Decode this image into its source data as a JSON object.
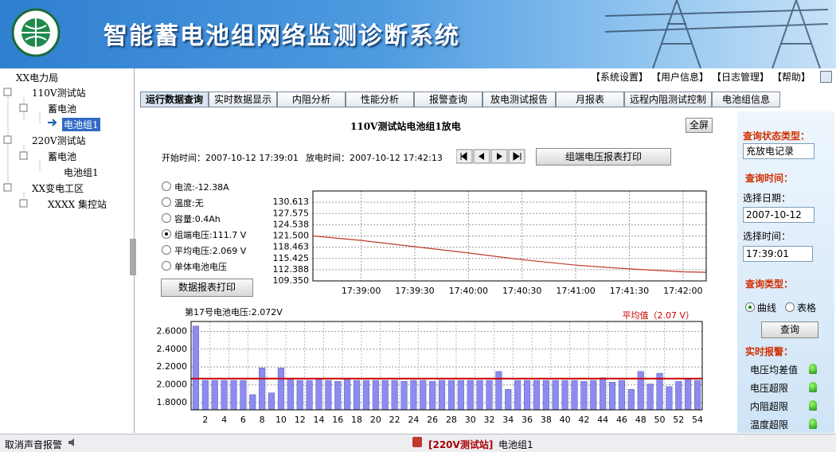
{
  "header": {
    "title": "智能蓄电池组网络监测诊断系统"
  },
  "nav": [
    "【系统设置】",
    "【用户信息】",
    "【日志管理】",
    "【帮助】"
  ],
  "tree": [
    "XX电力局",
    "110V测试站",
    "蓄电池",
    "电池组1",
    "220V测试站",
    "蓄电池",
    "电池组1",
    "XX变电工区",
    "XXXX 集控站"
  ],
  "tabs": [
    "运行数据查询",
    "实时数据显示",
    "内阻分析",
    "性能分析",
    "报警查询",
    "放电测试报告",
    "月报表",
    "远程内阻测试控制",
    "电池组信息"
  ],
  "panel": {
    "title": "110V测试站电池组1放电",
    "fullscreen": "全屏",
    "start": "开始时间：2007-10-12 17:39:01",
    "discharge": "放电时间：2007-10-12 17:42:13",
    "print_group": "组端电压报表打印",
    "print_data": "数据报表打印",
    "options": [
      {
        "label": "电流:-12.38A",
        "checked": false
      },
      {
        "label": "温度:无",
        "checked": false
      },
      {
        "label": "容量:0.4Ah",
        "checked": false
      },
      {
        "label": "组端电压:111.7 V",
        "checked": true
      },
      {
        "label": "平均电压:2.069 V",
        "checked": false
      },
      {
        "label": "单体电池电压",
        "checked": false
      }
    ]
  },
  "chart_data": [
    {
      "type": "line",
      "color": "#c0392b",
      "grid": true,
      "x": [
        "17:38:33",
        "17:39:00",
        "17:39:30",
        "17:40:00",
        "17:40:30",
        "17:41:00",
        "17:41:30",
        "17:42:00",
        "17:42:13"
      ],
      "values": [
        121.5,
        120.3,
        118.6,
        116.9,
        115.1,
        113.6,
        112.6,
        111.8,
        111.7
      ],
      "xlim": [
        "17:38:33",
        "17:42:13"
      ],
      "xticks": [
        "17:39:00",
        "17:39:30",
        "17:40:00",
        "17:40:30",
        "17:41:00",
        "17:41:30",
        "17:42:00"
      ],
      "ylim": [
        109.35,
        133.65
      ],
      "yticks": [
        {
          "value": 109.35,
          "label": "109.350"
        },
        112.388,
        115.425,
        118.463,
        {
          "value": 121.5,
          "label": "121.500"
        },
        124.538,
        127.575,
        130.613
      ]
    },
    {
      "type": "bar",
      "title": "第17号电池电压:2.072V",
      "color": "#8c8cf0",
      "grid": true,
      "categories": [
        null,
        "2",
        null,
        "4",
        null,
        "6",
        null,
        "8",
        null,
        "10",
        null,
        "12",
        null,
        "14",
        null,
        "16",
        null,
        "18",
        null,
        "20",
        null,
        "22",
        null,
        "24",
        null,
        "26",
        null,
        "28",
        null,
        "30",
        null,
        "32",
        null,
        "34",
        null,
        "36",
        null,
        "38",
        null,
        "40",
        null,
        "42",
        null,
        "44",
        null,
        "46",
        null,
        "48",
        null,
        "50",
        null,
        "52",
        null,
        "54"
      ],
      "values": [
        2.66,
        2.05,
        2.05,
        2.05,
        2.05,
        2.05,
        1.89,
        2.19,
        1.91,
        2.19,
        2.07,
        2.05,
        2.05,
        2.06,
        2.05,
        2.04,
        2.072,
        2.05,
        2.05,
        2.05,
        2.05,
        2.05,
        2.04,
        2.05,
        2.05,
        2.04,
        2.05,
        2.05,
        2.05,
        2.05,
        2.05,
        2.05,
        2.15,
        1.95,
        2.05,
        2.05,
        2.05,
        2.05,
        2.05,
        2.05,
        2.05,
        2.04,
        2.05,
        2.08,
        2.03,
        2.05,
        1.95,
        2.15,
        2.01,
        2.13,
        1.98,
        2.04,
        2.06,
        2.05
      ],
      "ylim": [
        1.72,
        2.71
      ],
      "yticks": [
        {
          "value": 1.8,
          "label": "1.8000"
        },
        {
          "value": 2.0,
          "label": "2.0000"
        },
        {
          "value": 2.2,
          "label": "2.2000"
        },
        {
          "value": 2.4,
          "label": "2.4000"
        },
        {
          "value": 2.6,
          "label": "2.6000"
        }
      ],
      "average": {
        "value": 2.07,
        "label": "平均值（2.07 V）",
        "color": "#cc0000"
      }
    }
  ],
  "right": {
    "status_type": "查询状态类型：",
    "status_value": "充放电记录",
    "time_title": "查询时间：",
    "date_label": "选择日期：",
    "date": "2007-10-12",
    "time_label": "选择时间：",
    "time": "17:39:01",
    "query_type": "查询类型：",
    "modes": [
      {
        "label": "曲线",
        "checked": true
      },
      {
        "label": "表格",
        "checked": false
      }
    ],
    "query": "查询",
    "alarm_title": "实时报警：",
    "alarms": [
      "电压均差值",
      "电压超限",
      "内阻超限",
      "温度超限"
    ]
  },
  "status": {
    "mute": "取消声音报警",
    "station": "[220V测试站]",
    "group": "电池组1"
  }
}
